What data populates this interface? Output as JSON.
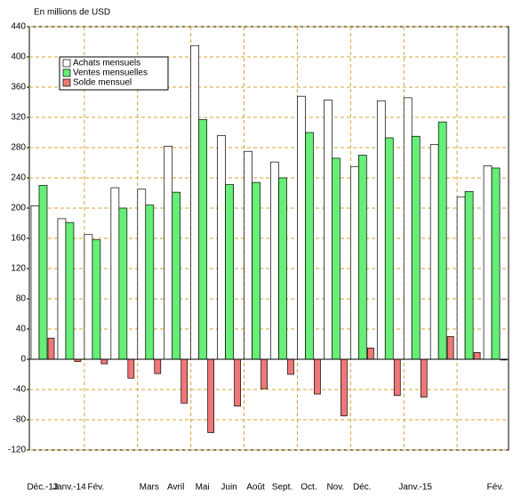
{
  "chart_data": {
    "type": "bar",
    "title": "En millions de USD",
    "categories": [
      "Déc.-13",
      "Janv.-14",
      "Fév.",
      null,
      "Mars",
      "Avril",
      "Mai",
      "Juin",
      "Août",
      "Sept.",
      "Oct.",
      "Nov.",
      "Déc.",
      null,
      "Janv.-15",
      null,
      null,
      "Fév."
    ],
    "series": [
      {
        "name": "Achats mensuels",
        "color": "#ffffff",
        "values": [
          203,
          186,
          165,
          227,
          225,
          282,
          415,
          296,
          275,
          261,
          348,
          343,
          255,
          342,
          346,
          284,
          215,
          256
        ]
      },
      {
        "name": "Ventes mensuelles",
        "color": "#66ee77",
        "values": [
          230,
          181,
          158,
          200,
          204,
          221,
          317,
          231,
          234,
          240,
          300,
          266,
          270,
          293,
          295,
          314,
          222,
          253
        ]
      },
      {
        "name": "Solde mensuel",
        "color": "#ee7777",
        "values": [
          28,
          -3,
          -6,
          -25,
          -19,
          -58,
          -97,
          -62,
          -39,
          -20,
          -46,
          -75,
          15,
          -48,
          -50,
          30,
          9,
          -1
        ]
      }
    ],
    "ylim": [
      -120,
      440
    ],
    "yticks": [
      -120,
      -80,
      -40,
      0,
      40,
      80,
      120,
      160,
      200,
      240,
      280,
      320,
      360,
      400,
      440
    ],
    "grid": true,
    "legend": "upper left"
  }
}
